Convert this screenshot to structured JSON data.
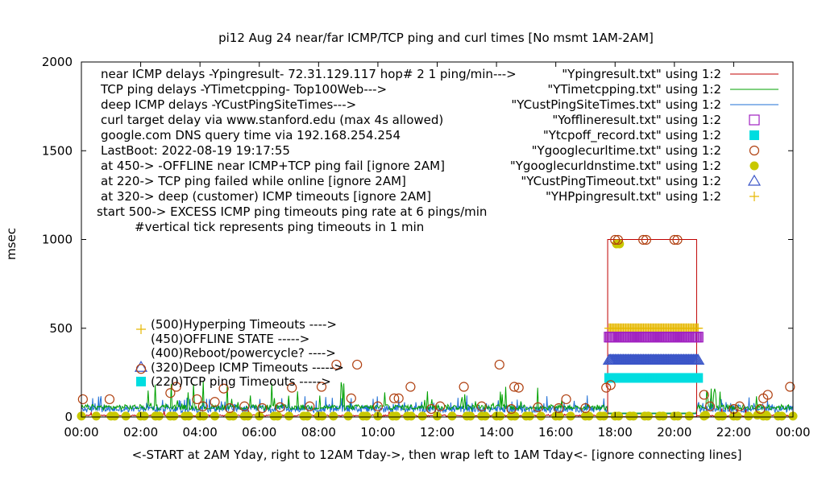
{
  "chart_data": {
    "type": "scatter",
    "title": "pi12 Aug 24  near/far ICMP/TCP ping and curl times [No msmt 1AM-2AM]",
    "xlabel": "<-START at 2AM Yday, right to 12AM Tday->, then wrap left to 1AM Tday<- [ignore connecting lines]",
    "ylabel": "msec",
    "xlim": [
      0,
      24
    ],
    "ylim": [
      0,
      2000
    ],
    "x_ticks": [
      {
        "v": 0,
        "label": "00:00"
      },
      {
        "v": 2,
        "label": "02:00"
      },
      {
        "v": 4,
        "label": "04:00"
      },
      {
        "v": 6,
        "label": "06:00"
      },
      {
        "v": 8,
        "label": "08:00"
      },
      {
        "v": 10,
        "label": "10:00"
      },
      {
        "v": 12,
        "label": "12:00"
      },
      {
        "v": 14,
        "label": "14:00"
      },
      {
        "v": 16,
        "label": "16:00"
      },
      {
        "v": 18,
        "label": "18:00"
      },
      {
        "v": 20,
        "label": "20:00"
      },
      {
        "v": 22,
        "label": "22:00"
      },
      {
        "v": 24,
        "label": "00:00"
      }
    ],
    "y_ticks": [
      {
        "v": 0,
        "label": "0"
      },
      {
        "v": 500,
        "label": "500"
      },
      {
        "v": 1000,
        "label": "1000"
      },
      {
        "v": 1500,
        "label": "1500"
      },
      {
        "v": 2000,
        "label": "2000"
      }
    ],
    "annotations": [
      "near ICMP delays -Ypingresult- 72.31.129.117 hop# 2  1 ping/min--->",
      "TCP ping delays -YTimetcpping- Top100Web--->",
      "deep ICMP delays -YCustPingSiteTimes--->",
      "curl target delay via www.stanford.edu (max 4s allowed)",
      "google.com DNS query time via 192.168.254.254",
      "LastBoot: 2022-08-19 19:17:55",
      "at 450-> -OFFLINE near ICMP+TCP ping fail [ignore 2AM]",
      "at 220-> TCP ping failed while online [ignore 2AM]",
      "at 320-> deep (customer) ICMP timeouts [ignore 2AM]",
      "start 500-> EXCESS ICMP ping timeouts ping rate at 6 pings/min",
      "#vertical tick represents ping timeouts in 1 min"
    ],
    "inner_legend": [
      {
        "label": "(500)Hyperping Timeouts ---->",
        "marker": "plus",
        "color": "#e6b800"
      },
      {
        "label": "(450)OFFLINE STATE ----->",
        "marker": "none",
        "color": "#000000"
      },
      {
        "label": "(400)Reboot/powercycle? ---->",
        "marker": "none",
        "color": "#000000"
      },
      {
        "label": "(320)Deep ICMP Timeouts ----->",
        "marker": "triangle",
        "color": "#3a55c8"
      },
      {
        "label": "(220)TCP ping Timeouts ----->",
        "marker": "square-filled",
        "color": "#00dde0"
      }
    ],
    "legend_position": "top-right",
    "series": [
      {
        "name": "\"Ypingresult.txt\" using 1:2",
        "style": "line",
        "color": "#c00000",
        "typical_ms": 10
      },
      {
        "name": "\"YTimetcpping.txt\" using 1:2",
        "style": "line",
        "color": "#00a000",
        "typical_ms": 60
      },
      {
        "name": "\"YCustPingSiteTimes.txt\" using 1:2",
        "style": "line",
        "color": "#1f6fd6",
        "typical_ms": 45
      },
      {
        "name": "\"Yofflineresult.txt\" using 1:2",
        "style": "square-open",
        "color": "#a020c0",
        "value_ms": 450,
        "x_range": [
          17.8,
          20.8
        ]
      },
      {
        "name": "\"Ytcpoff_record.txt\" using 1:2",
        "style": "square-filled",
        "color": "#00dde0",
        "value_ms": 220,
        "x_range": [
          17.8,
          20.8
        ]
      },
      {
        "name": "\"Ygooglecurltime.txt\" using 1:2",
        "style": "circle-open",
        "color": "#b04010",
        "points": [
          [
            0.05,
            100
          ],
          [
            0.95,
            100
          ],
          [
            3.0,
            135
          ],
          [
            3.2,
            170
          ],
          [
            3.9,
            100
          ],
          [
            4.1,
            60
          ],
          [
            4.5,
            85
          ],
          [
            4.8,
            160
          ],
          [
            5.0,
            50
          ],
          [
            5.5,
            60
          ],
          [
            6.1,
            50
          ],
          [
            6.7,
            55
          ],
          [
            7.1,
            165
          ],
          [
            7.7,
            60
          ],
          [
            8.1,
            170
          ],
          [
            8.6,
            295
          ],
          [
            9.1,
            105
          ],
          [
            9.3,
            295
          ],
          [
            10.0,
            60
          ],
          [
            10.55,
            105
          ],
          [
            10.7,
            105
          ],
          [
            11.1,
            170
          ],
          [
            11.8,
            45
          ],
          [
            12.1,
            60
          ],
          [
            12.9,
            170
          ],
          [
            13.5,
            60
          ],
          [
            14.1,
            295
          ],
          [
            14.5,
            45
          ],
          [
            14.6,
            170
          ],
          [
            14.75,
            165
          ],
          [
            15.4,
            55
          ],
          [
            16.1,
            50
          ],
          [
            16.35,
            100
          ],
          [
            17.0,
            50
          ],
          [
            17.7,
            165
          ],
          [
            17.85,
            180
          ],
          [
            18.0,
            998
          ],
          [
            18.1,
            998
          ],
          [
            18.95,
            998
          ],
          [
            19.05,
            998
          ],
          [
            20.0,
            998
          ],
          [
            20.1,
            998
          ],
          [
            21.0,
            125
          ],
          [
            21.2,
            60
          ],
          [
            22.0,
            45
          ],
          [
            22.2,
            60
          ],
          [
            22.9,
            45
          ],
          [
            23.0,
            105
          ],
          [
            23.15,
            125
          ],
          [
            23.9,
            170
          ]
        ]
      },
      {
        "name": "\"Ygooglecurldnstime.txt\" using 1:2",
        "style": "circle-filled",
        "color": "#c8c800",
        "value_ms": 5,
        "outliers": [
          [
            18.05,
            975
          ],
          [
            18.15,
            975
          ],
          [
            21.05,
            10
          ],
          [
            22.8,
            10
          ],
          [
            23.1,
            10
          ]
        ]
      },
      {
        "name": "\"YCustPingTimeout.txt\" using 1:2",
        "style": "triangle",
        "color": "#3a55c8",
        "value_ms": 320,
        "x_range": [
          17.8,
          20.8
        ]
      },
      {
        "name": "\"YHPpingresult.txt\" using 1:2",
        "style": "plus",
        "color": "#e6b800",
        "value_ms": 500,
        "x_range": [
          17.8,
          20.8
        ]
      }
    ],
    "outage_box": {
      "x_start": 17.75,
      "x_end": 20.75,
      "y_top": 1000
    }
  }
}
